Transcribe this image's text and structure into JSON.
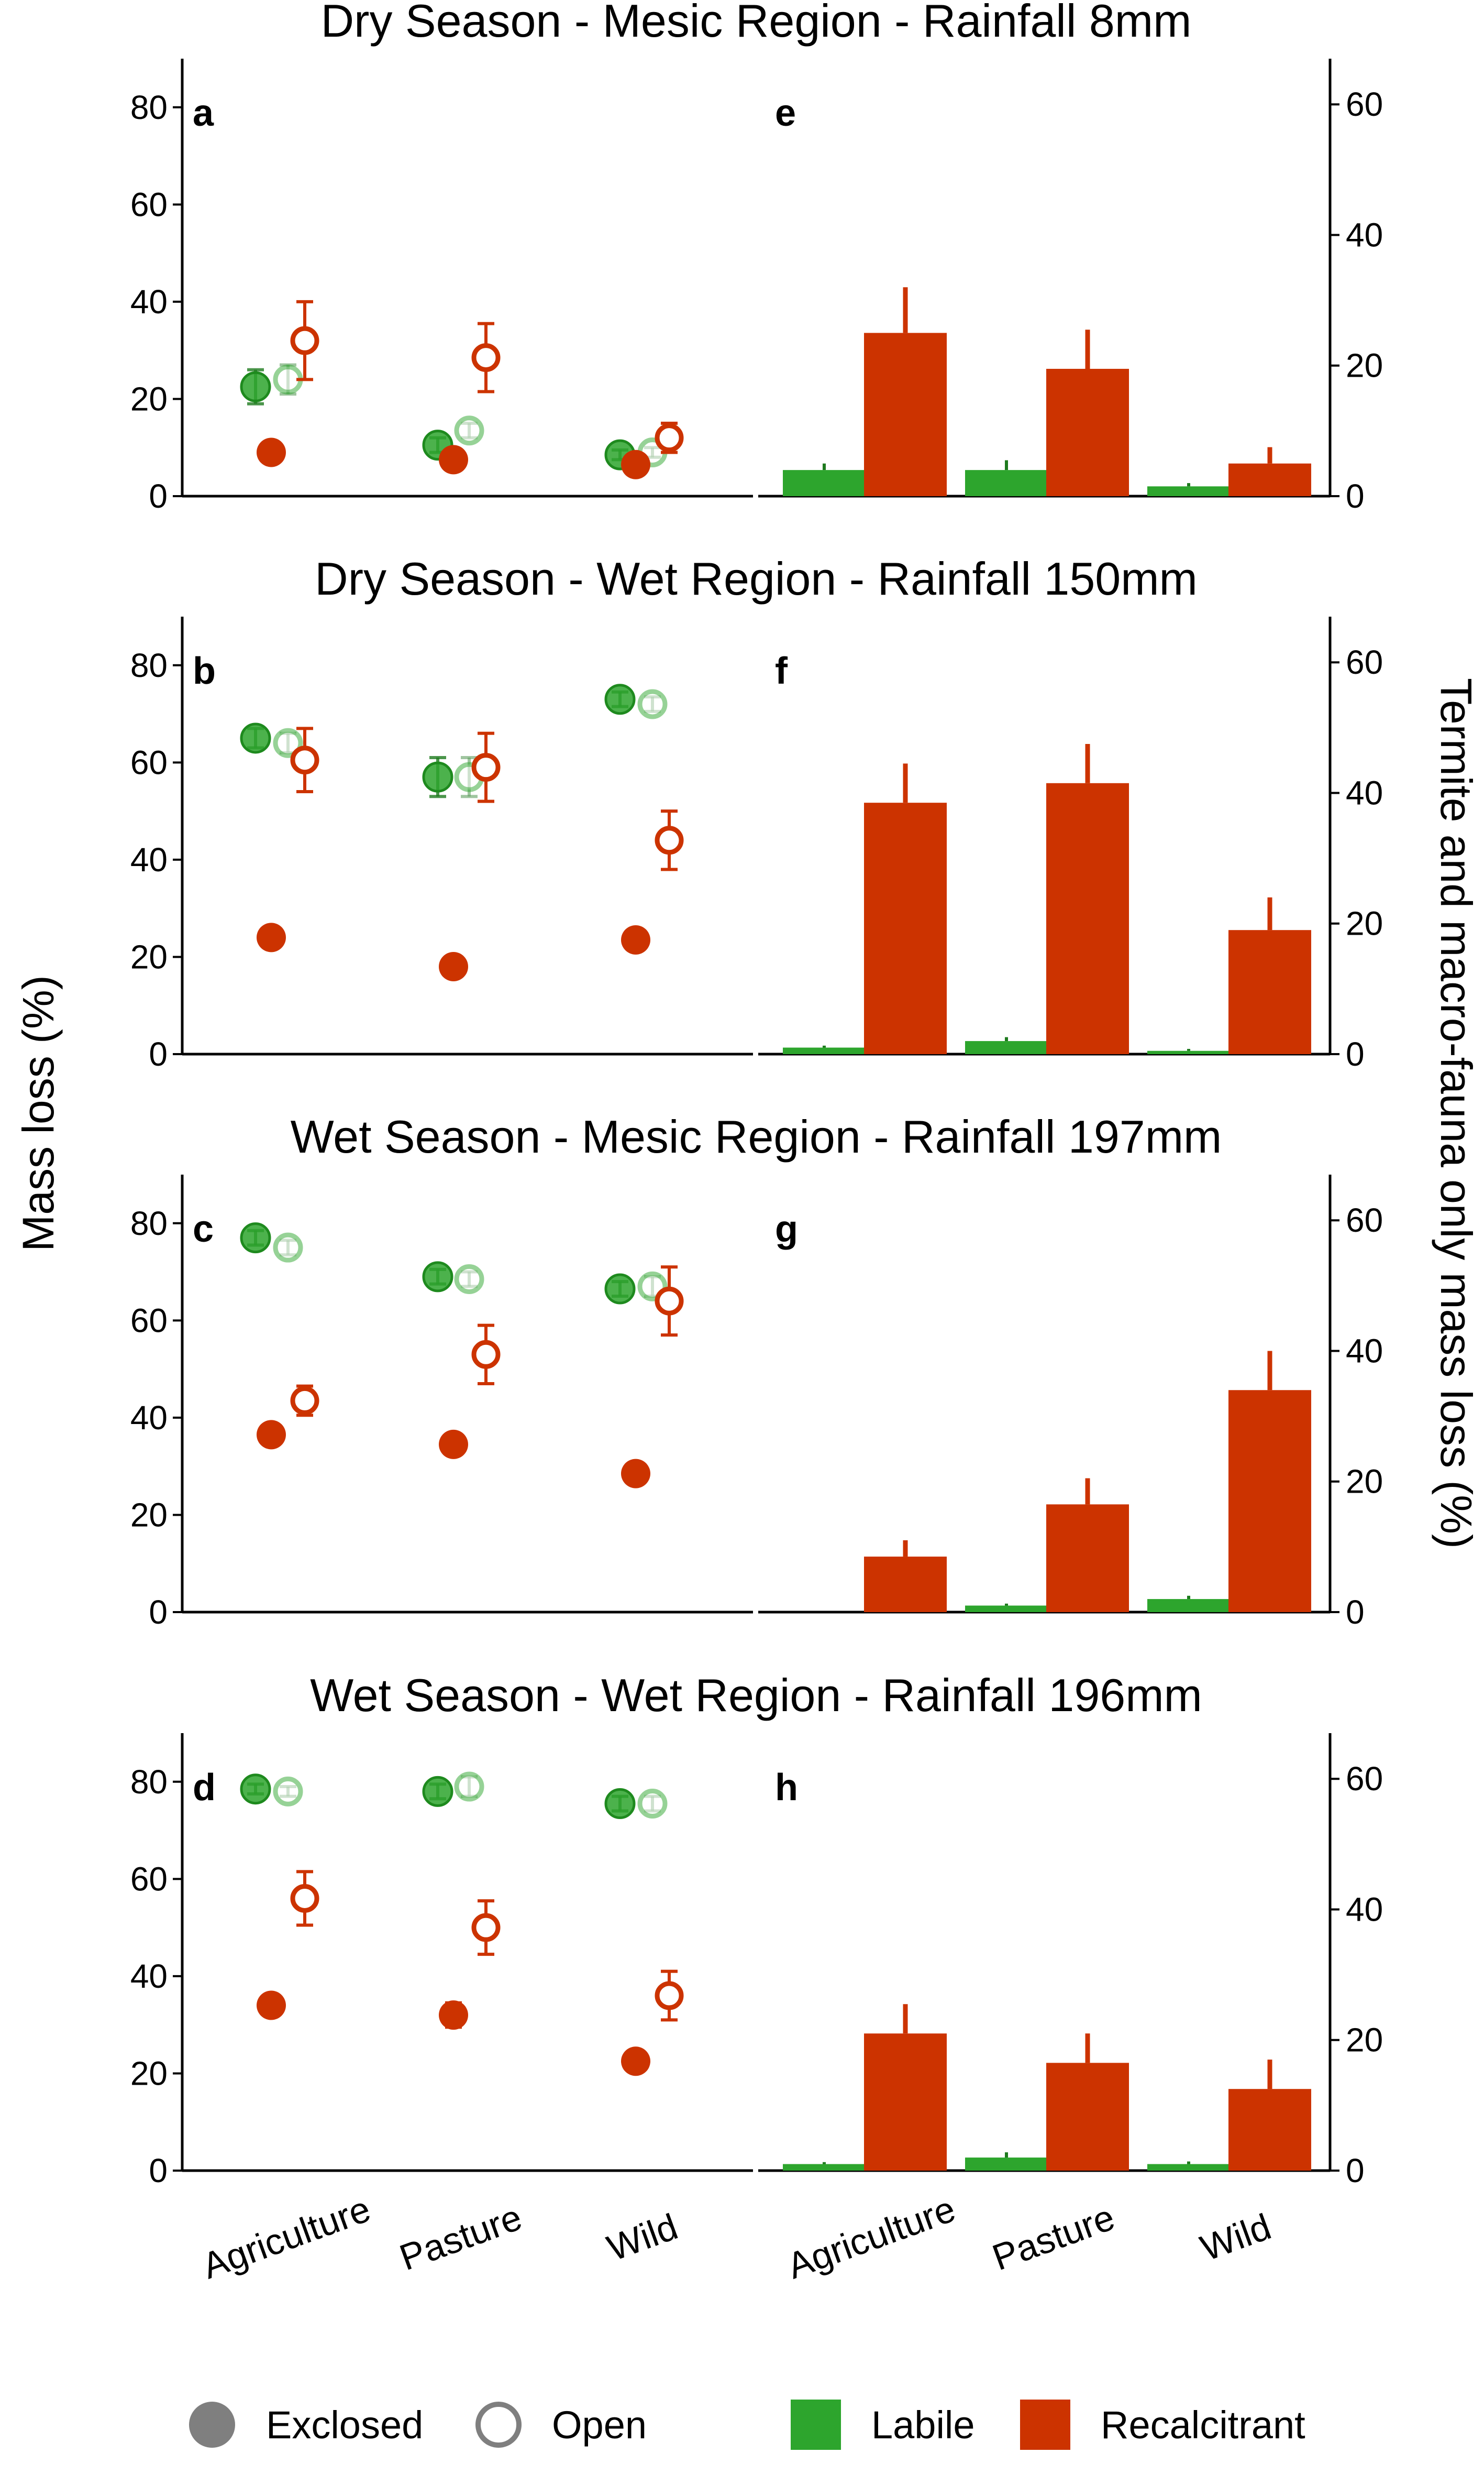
{
  "colors": {
    "labile": "#2da52d",
    "recalcitrant": "#cc3300",
    "exclosed_marker": "#7f7f7f",
    "axis": "#000000"
  },
  "axis_titles": {
    "left": "Mass loss (%)",
    "right": "Termite and macro-fauna only mass loss (%)"
  },
  "legend": {
    "exclosed": "Exclosed",
    "open": "Open",
    "labile": "Labile",
    "recalcitrant": "Recalcitrant"
  },
  "chart_data": {
    "type": "scatter+bar",
    "categories": [
      "Agriculture",
      "Pasture",
      "Wild"
    ],
    "left_ylim": [
      0,
      90
    ],
    "left_ticks": [
      0,
      20,
      40,
      60,
      80
    ],
    "right_ylim": [
      0,
      67
    ],
    "right_ticks": [
      0,
      20,
      40,
      60
    ],
    "rows": [
      {
        "title": "Dry Season - Mesic Region - Rainfall 8mm",
        "left_label": "a",
        "right_label": "e",
        "points": {
          "labile_exclosed": [
            {
              "y": 22.5,
              "err": 3.5
            },
            {
              "y": 10.5,
              "err": 1.5
            },
            {
              "y": 8.5,
              "err": 1.0
            }
          ],
          "labile_open": [
            {
              "y": 24.0,
              "err": 3.0
            },
            {
              "y": 13.5,
              "err": 1.5
            },
            {
              "y": 9.0,
              "err": 1.0
            }
          ],
          "recalcitrant_exclosed": [
            {
              "y": 9.0,
              "err": 0.8
            },
            {
              "y": 7.5,
              "err": 0.8
            },
            {
              "y": 6.5,
              "err": 0.8
            }
          ],
          "recalcitrant_open": [
            {
              "y": 32.0,
              "err": 8.0
            },
            {
              "y": 28.5,
              "err": 7.0
            },
            {
              "y": 12.0,
              "err": 3.0
            }
          ]
        },
        "bars": {
          "labile": [
            {
              "y": 4.0,
              "err": 1.0
            },
            {
              "y": 4.0,
              "err": 1.5
            },
            {
              "y": 1.5,
              "err": 0.5
            }
          ],
          "recalcitrant": [
            {
              "y": 25.0,
              "err": 7.0
            },
            {
              "y": 19.5,
              "err": 6.0
            },
            {
              "y": 5.0,
              "err": 2.5
            }
          ]
        }
      },
      {
        "title": "Dry Season - Wet Region - Rainfall 150mm",
        "left_label": "b",
        "right_label": "f",
        "points": {
          "labile_exclosed": [
            {
              "y": 65.0,
              "err": 2.0
            },
            {
              "y": 57.0,
              "err": 4.0
            },
            {
              "y": 73.0,
              "err": 1.5
            }
          ],
          "labile_open": [
            {
              "y": 64.0,
              "err": 2.0
            },
            {
              "y": 57.0,
              "err": 4.0
            },
            {
              "y": 72.0,
              "err": 1.5
            }
          ],
          "recalcitrant_exclosed": [
            {
              "y": 24.0,
              "err": 1.2
            },
            {
              "y": 18.0,
              "err": 1.0
            },
            {
              "y": 23.5,
              "err": 1.2
            }
          ],
          "recalcitrant_open": [
            {
              "y": 60.5,
              "err": 6.5
            },
            {
              "y": 59.0,
              "err": 7.0
            },
            {
              "y": 44.0,
              "err": 6.0
            }
          ]
        },
        "bars": {
          "labile": [
            {
              "y": 1.0,
              "err": 0.3
            },
            {
              "y": 2.0,
              "err": 0.6
            },
            {
              "y": 0.5,
              "err": 0.3
            }
          ],
          "recalcitrant": [
            {
              "y": 38.5,
              "err": 6.0
            },
            {
              "y": 41.5,
              "err": 6.0
            },
            {
              "y": 19.0,
              "err": 5.0
            }
          ]
        }
      },
      {
        "title": "Wet Season - Mesic Region - Rainfall 197mm",
        "left_label": "c",
        "right_label": "g",
        "points": {
          "labile_exclosed": [
            {
              "y": 77.0,
              "err": 1.5
            },
            {
              "y": 69.0,
              "err": 1.5
            },
            {
              "y": 66.5,
              "err": 1.5
            }
          ],
          "labile_open": [
            {
              "y": 75.0,
              "err": 1.5
            },
            {
              "y": 68.5,
              "err": 1.5
            },
            {
              "y": 67.0,
              "err": 2.0
            }
          ],
          "recalcitrant_exclosed": [
            {
              "y": 36.5,
              "err": 1.0
            },
            {
              "y": 34.5,
              "err": 1.0
            },
            {
              "y": 28.5,
              "err": 1.0
            }
          ],
          "recalcitrant_open": [
            {
              "y": 43.5,
              "err": 3.0
            },
            {
              "y": 53.0,
              "err": 6.0
            },
            {
              "y": 64.0,
              "err": 7.0
            }
          ]
        },
        "bars": {
          "labile": [
            {
              "y": 0.0,
              "err": 0.0
            },
            {
              "y": 1.0,
              "err": 0.3
            },
            {
              "y": 2.0,
              "err": 0.5
            }
          ],
          "recalcitrant": [
            {
              "y": 8.5,
              "err": 2.5
            },
            {
              "y": 16.5,
              "err": 4.0
            },
            {
              "y": 34.0,
              "err": 6.0
            }
          ]
        }
      },
      {
        "title": "Wet Season - Wet Region - Rainfall 196mm",
        "left_label": "d",
        "right_label": "h",
        "points": {
          "labile_exclosed": [
            {
              "y": 78.5,
              "err": 1.0
            },
            {
              "y": 78.0,
              "err": 1.5
            },
            {
              "y": 75.5,
              "err": 1.5
            }
          ],
          "labile_open": [
            {
              "y": 78.0,
              "err": 1.0
            },
            {
              "y": 79.0,
              "err": 2.0
            },
            {
              "y": 75.5,
              "err": 1.5
            }
          ],
          "recalcitrant_exclosed": [
            {
              "y": 34.0,
              "err": 1.0
            },
            {
              "y": 32.0,
              "err": 2.5
            },
            {
              "y": 22.5,
              "err": 1.0
            }
          ],
          "recalcitrant_open": [
            {
              "y": 56.0,
              "err": 5.5
            },
            {
              "y": 50.0,
              "err": 5.5
            },
            {
              "y": 36.0,
              "err": 5.0
            }
          ]
        },
        "bars": {
          "labile": [
            {
              "y": 1.0,
              "err": 0.3
            },
            {
              "y": 2.0,
              "err": 0.8
            },
            {
              "y": 1.0,
              "err": 0.4
            }
          ],
          "recalcitrant": [
            {
              "y": 21.0,
              "err": 4.5
            },
            {
              "y": 16.5,
              "err": 4.5
            },
            {
              "y": 12.5,
              "err": 4.5
            }
          ]
        }
      }
    ]
  }
}
